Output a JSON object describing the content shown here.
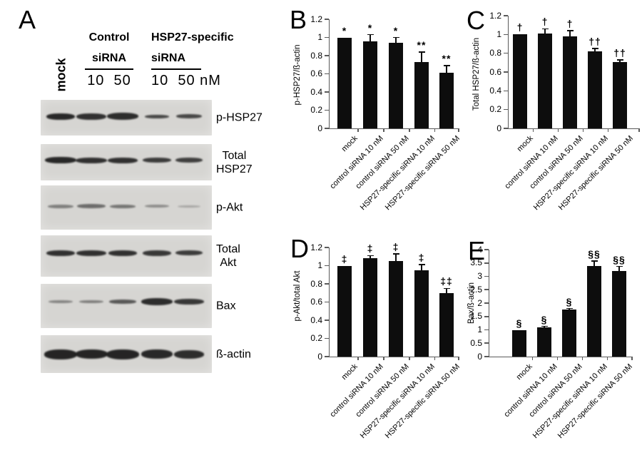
{
  "colors": {
    "background": "#ffffff",
    "bar": "#0d0d0d",
    "axis": "#5a5a5a",
    "blot_background": "#d6d5d2",
    "band": "#161616",
    "text": "#000000"
  },
  "panelA": {
    "letter": "A",
    "header": {
      "mock": "mock",
      "control_group": {
        "line1": "Control",
        "line2": "siRNA",
        "doses": "10  50"
      },
      "hsp27_group": {
        "line1": "HSP27-specific",
        "line2": "siRNA",
        "doses": "10  50 nM"
      }
    },
    "lanes": [
      "mock",
      "control siRNA 10 nM",
      "control siRNA 50 nM",
      "HSP27-specific siRNA 10 nM",
      "HSP27-specific siRNA 50 nM"
    ],
    "blots": [
      {
        "label_lines": [
          "p-HSP27"
        ],
        "bands": [
          {
            "w": 40,
            "h": 9,
            "intensity": 0.9
          },
          {
            "w": 42,
            "h": 9,
            "intensity": 0.86
          },
          {
            "w": 44,
            "h": 10,
            "intensity": 0.88
          },
          {
            "w": 34,
            "h": 5,
            "intensity": 0.74
          },
          {
            "w": 36,
            "h": 6,
            "intensity": 0.74
          }
        ]
      },
      {
        "label_lines": [
          "Total",
          "HSP27"
        ],
        "bands": [
          {
            "w": 44,
            "h": 9,
            "intensity": 0.9
          },
          {
            "w": 44,
            "h": 8,
            "intensity": 0.86
          },
          {
            "w": 42,
            "h": 8,
            "intensity": 0.86
          },
          {
            "w": 40,
            "h": 7,
            "intensity": 0.8
          },
          {
            "w": 38,
            "h": 7,
            "intensity": 0.78
          }
        ]
      },
      {
        "label_lines": [
          "p-Akt"
        ],
        "bands": [
          {
            "w": 36,
            "h": 5,
            "intensity": 0.45
          },
          {
            "w": 40,
            "h": 6,
            "intensity": 0.55
          },
          {
            "w": 36,
            "h": 5,
            "intensity": 0.5
          },
          {
            "w": 34,
            "h": 4,
            "intensity": 0.38
          },
          {
            "w": 32,
            "h": 3,
            "intensity": 0.25
          }
        ]
      },
      {
        "label_lines": [
          "Total",
          "Akt"
        ],
        "bands": [
          {
            "w": 40,
            "h": 8,
            "intensity": 0.86
          },
          {
            "w": 42,
            "h": 8,
            "intensity": 0.86
          },
          {
            "w": 40,
            "h": 8,
            "intensity": 0.86
          },
          {
            "w": 40,
            "h": 8,
            "intensity": 0.82
          },
          {
            "w": 38,
            "h": 7,
            "intensity": 0.8
          }
        ]
      },
      {
        "label_lines": [
          "Bax"
        ],
        "bands": [
          {
            "w": 34,
            "h": 4,
            "intensity": 0.42
          },
          {
            "w": 34,
            "h": 4,
            "intensity": 0.45
          },
          {
            "w": 38,
            "h": 6,
            "intensity": 0.65
          },
          {
            "w": 44,
            "h": 10,
            "intensity": 0.88
          },
          {
            "w": 42,
            "h": 8,
            "intensity": 0.82
          }
        ]
      },
      {
        "label_lines": [
          "ß-actin"
        ],
        "bands": [
          {
            "w": 46,
            "h": 14,
            "intensity": 0.92
          },
          {
            "w": 45,
            "h": 13,
            "intensity": 0.92
          },
          {
            "w": 46,
            "h": 14,
            "intensity": 0.92
          },
          {
            "w": 44,
            "h": 13,
            "intensity": 0.9
          },
          {
            "w": 42,
            "h": 12,
            "intensity": 0.88
          }
        ]
      }
    ]
  },
  "chart_data": [
    {
      "panel": "B",
      "type": "bar",
      "ylabel": "p-HSP27/ß-actin",
      "xlabel": "",
      "ylim": [
        0,
        1.2
      ],
      "yticks": [
        "0",
        "0.2",
        "0.4",
        "0.6",
        "0.8",
        "1",
        "1.2"
      ],
      "grid": false,
      "legend": false,
      "categories": [
        "mock",
        "control siRNA 10 nM",
        "control siRNA 50 nM",
        "HSP27-specific siRNA 10 nM",
        "HSP27-specific siRNA 50 nM"
      ],
      "values": [
        1.0,
        0.96,
        0.94,
        0.73,
        0.61
      ],
      "errors": [
        0,
        0.07,
        0.06,
        0.11,
        0.08
      ],
      "annotations": [
        "*",
        "*",
        "*",
        "**",
        "**"
      ]
    },
    {
      "panel": "C",
      "type": "bar",
      "ylabel": "Total HSP27/ß-actin",
      "xlabel": "",
      "ylim": [
        0,
        1.2
      ],
      "yticks": [
        "0",
        "0.2",
        "0.4",
        "0.6",
        "0.8",
        "1",
        "1.2"
      ],
      "grid": false,
      "legend": false,
      "categories": [
        "mock",
        "control siRNA 10 nM",
        "control siRNA 50 nM",
        "HSP27-specific siRNA 10 nM",
        "HSP27-specific siRNA 50 nM"
      ],
      "values": [
        1.0,
        1.01,
        0.98,
        0.82,
        0.71
      ],
      "errors": [
        0,
        0.05,
        0.06,
        0.03,
        0.02
      ],
      "annotations": [
        "†",
        "†",
        "†",
        "††",
        "††"
      ]
    },
    {
      "panel": "D",
      "type": "bar",
      "ylabel": "p-Akt/total Akt",
      "xlabel": "",
      "ylim": [
        0,
        1.2
      ],
      "yticks": [
        "0",
        "0.2",
        "0.4",
        "0.6",
        "0.8",
        "1",
        "1.2"
      ],
      "grid": false,
      "legend": false,
      "categories": [
        "mock",
        "control siRNA 10 nM",
        "control siRNA 50 nM",
        "HSP27-specific siRNA 10 nM",
        "HSP27-specific siRNA 50 nM"
      ],
      "values": [
        1.0,
        1.08,
        1.05,
        0.95,
        0.7
      ],
      "errors": [
        0,
        0.03,
        0.08,
        0.06,
        0.05
      ],
      "annotations": [
        "‡",
        "‡",
        "‡",
        "‡",
        "‡‡"
      ]
    },
    {
      "panel": "E",
      "type": "bar",
      "ylabel": "Bax/ß-actin",
      "xlabel": "",
      "ylim": [
        0,
        4
      ],
      "yticks": [
        "0",
        "0.5",
        "1",
        "1.5",
        "2",
        "2.5",
        "3",
        "3.5",
        "4"
      ],
      "grid": false,
      "legend": false,
      "categories": [
        "mock",
        "control siRNA 10 nM",
        "control siRNA 50 nM",
        "HSP27-specific siRNA 10 nM",
        "HSP27-specific siRNA 50 nM"
      ],
      "values": [
        1.0,
        1.1,
        1.75,
        3.4,
        3.2
      ],
      "errors": [
        0,
        0.03,
        0.05,
        0.17,
        0.17
      ],
      "annotations": [
        "§",
        "§",
        "§",
        "§§",
        "§§"
      ]
    }
  ]
}
